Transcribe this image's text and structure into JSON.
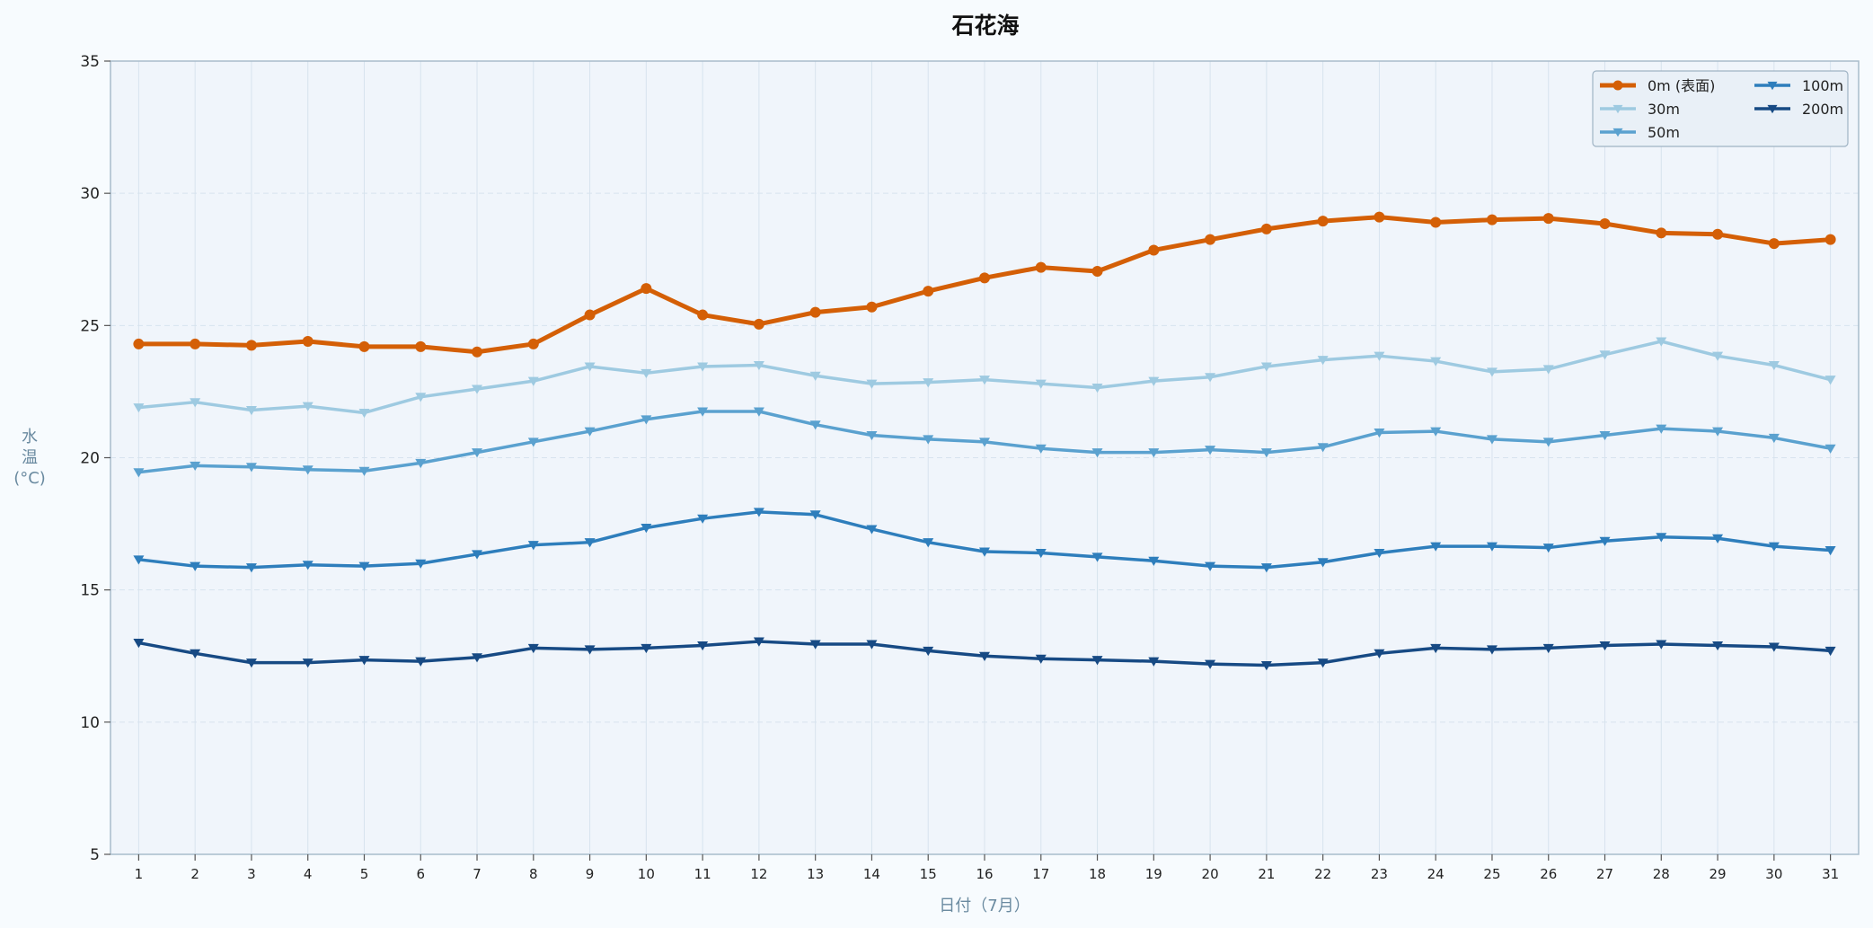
{
  "chart_data": {
    "type": "line",
    "title": "石花海",
    "xlabel": "日付（7月）",
    "ylabel_lines": [
      "水",
      "温",
      "(°C)"
    ],
    "x": [
      1,
      2,
      3,
      4,
      5,
      6,
      7,
      8,
      9,
      10,
      11,
      12,
      13,
      14,
      15,
      16,
      17,
      18,
      19,
      20,
      21,
      22,
      23,
      24,
      25,
      26,
      27,
      28,
      29,
      30,
      31
    ],
    "xlim": [
      0.5,
      31.5
    ],
    "ylim": [
      5,
      35
    ],
    "yticks": [
      5,
      10,
      15,
      20,
      25,
      30,
      35
    ],
    "grid": true,
    "legend_position": "top-right",
    "legend_columns": 2,
    "background_colors": {
      "figure": "#f7fbfe",
      "plot": "#f0f5fb",
      "axes_edge": "#a9bccb",
      "grid": "#d7e3ee"
    },
    "series": [
      {
        "name": "0m (表面)",
        "color": "#d45f06",
        "marker": "circle",
        "line_width": 5,
        "values": [
          24.3,
          24.3,
          24.25,
          24.4,
          24.2,
          24.2,
          24.0,
          24.3,
          25.4,
          26.4,
          25.4,
          25.05,
          25.5,
          25.7,
          26.3,
          26.8,
          27.2,
          27.05,
          27.85,
          28.25,
          28.65,
          28.95,
          29.1,
          28.9,
          29.0,
          29.05,
          28.85,
          28.5,
          28.45,
          28.1,
          28.25
        ]
      },
      {
        "name": "30m",
        "color": "#9ecae1",
        "marker": "triangle-down",
        "line_width": 3.5,
        "values": [
          21.9,
          22.1,
          21.8,
          21.95,
          21.7,
          22.3,
          22.6,
          22.9,
          23.45,
          23.2,
          23.45,
          23.5,
          23.1,
          22.8,
          22.85,
          22.95,
          22.8,
          22.65,
          22.9,
          23.05,
          23.45,
          23.7,
          23.85,
          23.65,
          23.25,
          23.35,
          23.9,
          24.4,
          23.85,
          23.5,
          22.95
        ]
      },
      {
        "name": "50m",
        "color": "#5aa1cf",
        "marker": "triangle-down",
        "line_width": 3.5,
        "values": [
          19.45,
          19.7,
          19.65,
          19.55,
          19.5,
          19.8,
          20.2,
          20.6,
          21.0,
          21.45,
          21.75,
          21.75,
          21.25,
          20.85,
          20.7,
          20.6,
          20.35,
          20.2,
          20.2,
          20.3,
          20.2,
          20.4,
          20.95,
          21.0,
          20.7,
          20.6,
          20.85,
          21.1,
          21.0,
          20.75,
          20.35
        ]
      },
      {
        "name": "100m",
        "color": "#2e7ebc",
        "marker": "triangle-down",
        "line_width": 3.5,
        "values": [
          16.15,
          15.9,
          15.85,
          15.95,
          15.9,
          16.0,
          16.35,
          16.7,
          16.8,
          17.35,
          17.7,
          17.95,
          17.85,
          17.3,
          16.8,
          16.45,
          16.4,
          16.25,
          16.1,
          15.9,
          15.85,
          16.05,
          16.4,
          16.65,
          16.65,
          16.6,
          16.85,
          17.0,
          16.95,
          16.65,
          16.5
        ]
      },
      {
        "name": "200m",
        "color": "#174a84",
        "marker": "triangle-down",
        "line_width": 3.5,
        "values": [
          13.0,
          12.6,
          12.25,
          12.25,
          12.35,
          12.3,
          12.45,
          12.8,
          12.75,
          12.8,
          12.9,
          13.05,
          12.95,
          12.95,
          12.7,
          12.5,
          12.4,
          12.35,
          12.3,
          12.2,
          12.15,
          12.25,
          12.6,
          12.8,
          12.75,
          12.8,
          12.9,
          12.95,
          12.9,
          12.85,
          12.7
        ]
      }
    ]
  }
}
